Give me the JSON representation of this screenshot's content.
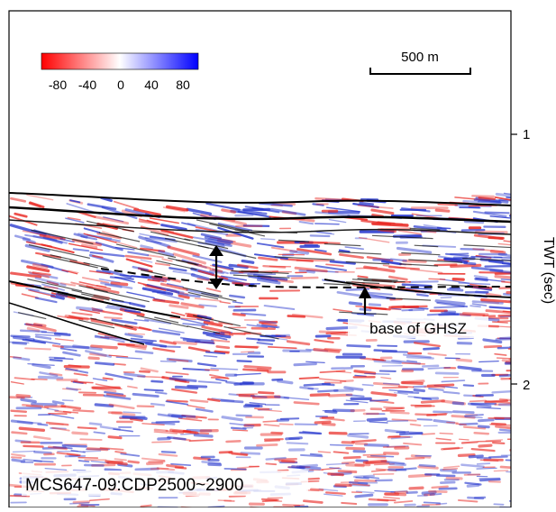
{
  "colorbar": {
    "ticks": [
      "-80",
      "-40",
      "0",
      "40",
      "80"
    ],
    "colors": {
      "negative": "#ff0000",
      "zero": "#ffffff",
      "positive": "#0000ff"
    }
  },
  "scale_bar": {
    "label": "500 m"
  },
  "axis": {
    "label": "TWT (sec)",
    "ticks": [
      "1",
      "2"
    ]
  },
  "annotations": {
    "bsr_label": "base of GHSZ",
    "line_id": "MCS647-09:CDP2500~2900"
  },
  "section": {
    "description_colors": {
      "reflector": "#000000",
      "interpretation_line": "#000000"
    }
  }
}
